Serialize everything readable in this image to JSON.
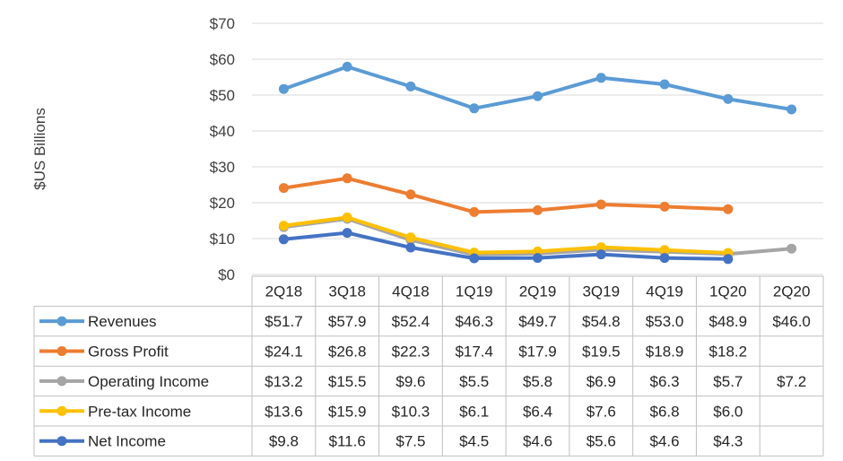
{
  "chart_data": {
    "type": "line",
    "ylabel": "$US Billions",
    "ylim": [
      0,
      70
    ],
    "yticks": [
      "$0",
      "$10",
      "$20",
      "$30",
      "$40",
      "$50",
      "$60",
      "$70"
    ],
    "ytick_values": [
      0,
      10,
      20,
      30,
      40,
      50,
      60,
      70
    ],
    "categories": [
      "2Q18",
      "3Q18",
      "4Q18",
      "1Q19",
      "2Q19",
      "3Q19",
      "4Q19",
      "1Q20",
      "2Q20"
    ],
    "grid": true,
    "legend": "data-table",
    "series": [
      {
        "name": "Revenues",
        "color": "#5b9bd5",
        "values": [
          51.7,
          57.9,
          52.4,
          46.3,
          49.7,
          54.8,
          53.0,
          48.9,
          46.0
        ],
        "labels": [
          "$51.7",
          "$57.9",
          "$52.4",
          "$46.3",
          "$49.7",
          "$54.8",
          "$53.0",
          "$48.9",
          "$46.0"
        ]
      },
      {
        "name": "Gross Profit",
        "color": "#ed7d31",
        "values": [
          24.1,
          26.8,
          22.3,
          17.4,
          17.9,
          19.5,
          18.9,
          18.2,
          null
        ],
        "labels": [
          "$24.1",
          "$26.8",
          "$22.3",
          "$17.4",
          "$17.9",
          "$19.5",
          "$18.9",
          "$18.2",
          ""
        ]
      },
      {
        "name": "Operating Income",
        "color": "#a5a5a5",
        "values": [
          13.2,
          15.5,
          9.6,
          5.5,
          5.8,
          6.9,
          6.3,
          5.7,
          7.2
        ],
        "labels": [
          "$13.2",
          "$15.5",
          "$9.6",
          "$5.5",
          "$5.8",
          "$6.9",
          "$6.3",
          "$5.7",
          "$7.2"
        ]
      },
      {
        "name": "Pre-tax Income",
        "color": "#ffc000",
        "values": [
          13.6,
          15.9,
          10.3,
          6.1,
          6.4,
          7.6,
          6.8,
          6.0,
          null
        ],
        "labels": [
          "$13.6",
          "$15.9",
          "$10.3",
          "$6.1",
          "$6.4",
          "$7.6",
          "$6.8",
          "$6.0",
          ""
        ]
      },
      {
        "name": "Net Income",
        "color": "#4472c4",
        "values": [
          9.8,
          11.6,
          7.5,
          4.5,
          4.6,
          5.6,
          4.6,
          4.3,
          null
        ],
        "labels": [
          "$9.8",
          "$11.6",
          "$7.5",
          "$4.5",
          "$4.6",
          "$5.6",
          "$4.6",
          "$4.3",
          ""
        ]
      }
    ]
  }
}
